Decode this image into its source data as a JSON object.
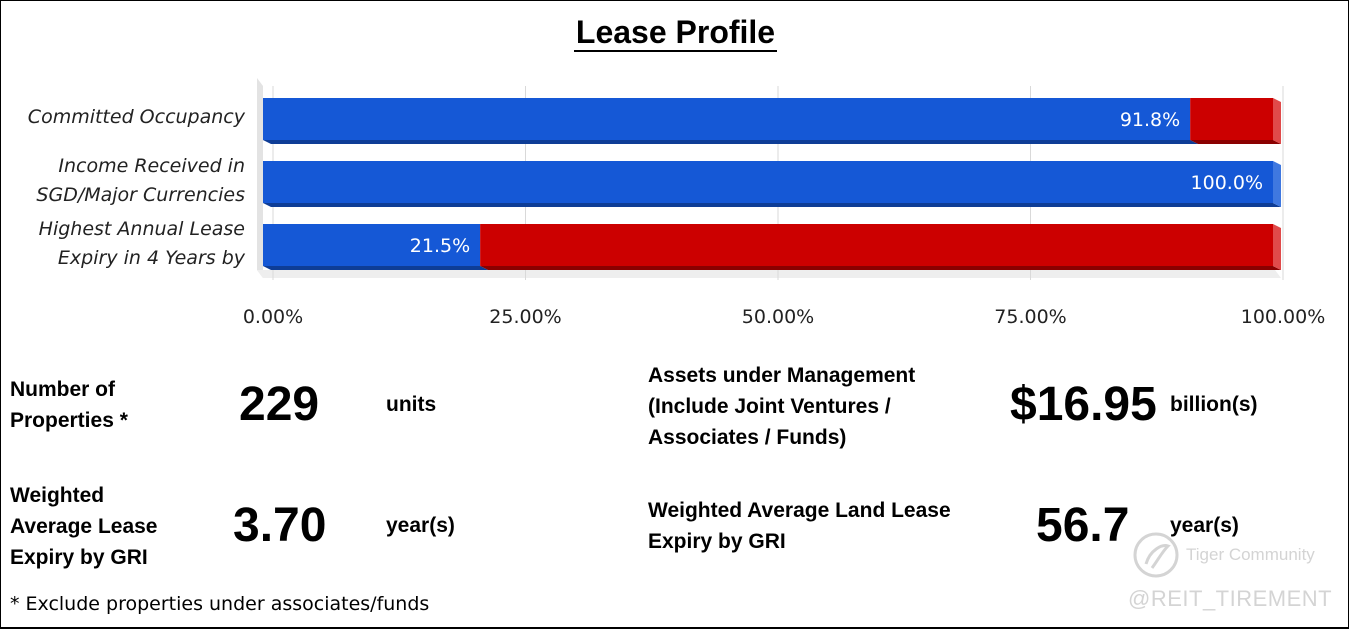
{
  "title": "Lease Profile",
  "chart_data": {
    "type": "bar",
    "orientation": "horizontal",
    "stacked": true,
    "categories": [
      "Committed Occupancy",
      "Income Received in SGD/Major Currencies",
      "Highest Annual Lease Expiry in 4 Years by"
    ],
    "category_lines": [
      [
        "Committed Occupancy"
      ],
      [
        "Income Received in",
        "SGD/Major Currencies"
      ],
      [
        "Highest Annual Lease",
        "Expiry in 4 Years by"
      ]
    ],
    "series": [
      {
        "values": [
          91.8,
          100.0,
          21.5
        ],
        "color": "#1558d6",
        "data_labels": [
          "91.8%",
          "100.0%",
          "21.5%"
        ]
      },
      {
        "values": [
          8.2,
          0.0,
          78.5
        ],
        "color": "#cc0000"
      }
    ],
    "xlim": [
      0,
      100
    ],
    "xticks": [
      "0.00%",
      "25.00%",
      "50.00%",
      "75.00%",
      "100.00%"
    ],
    "grid": true
  },
  "metrics": {
    "properties": {
      "label": "Number of\nProperties *",
      "value": "229",
      "unit": "units"
    },
    "aum": {
      "label": "Assets under Management\n(Include Joint Ventures /\nAssociates / Funds)",
      "value": "$16.95",
      "unit": "billion(s)"
    },
    "wale": {
      "label": "Weighted\nAverage Lease\nExpiry by GRI",
      "value": "3.70",
      "unit": "year(s)"
    },
    "land_lease": {
      "label": "Weighted Average Land Lease\nExpiry by GRI",
      "value": "56.7",
      "unit": "year(s)"
    }
  },
  "footnote": "* Exclude properties under associates/funds",
  "watermark": {
    "brand": "Tiger Community",
    "handle": "@REIT_TIREMENT"
  }
}
